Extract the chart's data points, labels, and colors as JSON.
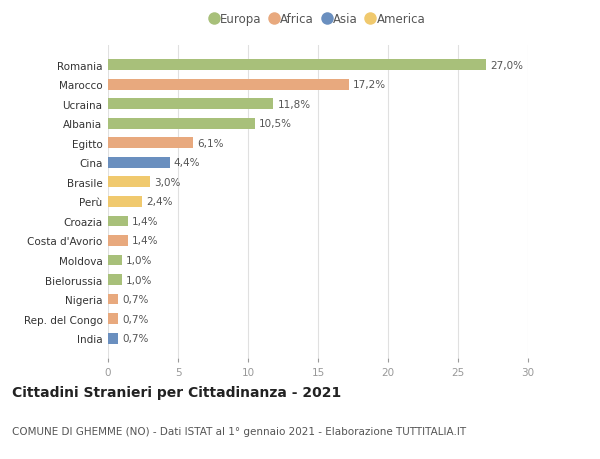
{
  "categories": [
    "Romania",
    "Marocco",
    "Ucraina",
    "Albania",
    "Egitto",
    "Cina",
    "Brasile",
    "Perù",
    "Croazia",
    "Costa d'Avorio",
    "Moldova",
    "Bielorussia",
    "Nigeria",
    "Rep. del Congo",
    "India"
  ],
  "values": [
    27.0,
    17.2,
    11.8,
    10.5,
    6.1,
    4.4,
    3.0,
    2.4,
    1.4,
    1.4,
    1.0,
    1.0,
    0.7,
    0.7,
    0.7
  ],
  "labels": [
    "27,0%",
    "17,2%",
    "11,8%",
    "10,5%",
    "6,1%",
    "4,4%",
    "3,0%",
    "2,4%",
    "1,4%",
    "1,4%",
    "1,0%",
    "1,0%",
    "0,7%",
    "0,7%",
    "0,7%"
  ],
  "continent": [
    "Europa",
    "Africa",
    "Europa",
    "Europa",
    "Africa",
    "Asia",
    "America",
    "America",
    "Europa",
    "Africa",
    "Europa",
    "Europa",
    "Africa",
    "Africa",
    "Asia"
  ],
  "colors": {
    "Europa": "#a8c07a",
    "Africa": "#e8a97e",
    "Asia": "#6a8fbf",
    "America": "#f0c96e"
  },
  "legend_order": [
    "Europa",
    "Africa",
    "Asia",
    "America"
  ],
  "title": "Cittadini Stranieri per Cittadinanza - 2021",
  "subtitle": "COMUNE DI GHEMME (NO) - Dati ISTAT al 1° gennaio 2021 - Elaborazione TUTTITALIA.IT",
  "xlim": [
    0,
    30
  ],
  "xticks": [
    0,
    5,
    10,
    15,
    20,
    25,
    30
  ],
  "background_color": "#ffffff",
  "grid_color": "#e0e0e0",
  "bar_height": 0.55,
  "title_fontsize": 10,
  "subtitle_fontsize": 7.5,
  "label_fontsize": 7.5,
  "tick_fontsize": 7.5,
  "legend_fontsize": 8.5
}
